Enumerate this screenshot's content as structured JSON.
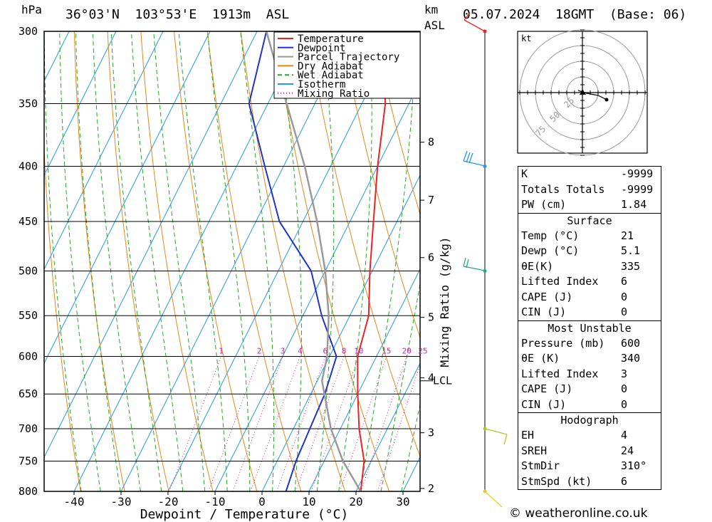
{
  "header": {
    "unit_left": "hPa",
    "location": "36°03'N  103°53'E  1913m  ASL",
    "km_label": "km",
    "asl_label": "ASL",
    "datetime": "05.07.2024  18GMT  (Base: 06)"
  },
  "legend": {
    "items": [
      {
        "label": "Temperature",
        "color": "#ee2222",
        "dash": ""
      },
      {
        "label": "Dewpoint",
        "color": "#2233cc",
        "dash": ""
      },
      {
        "label": "Parcel Trajectory",
        "color": "#999999",
        "dash": ""
      },
      {
        "label": "Dry Adiabat",
        "color": "#e8861a",
        "dash": ""
      },
      {
        "label": "Wet Adiabat",
        "color": "#22aa22",
        "dash": "6,4"
      },
      {
        "label": "Isotherm",
        "color": "#2299ee",
        "dash": ""
      },
      {
        "label": "Mixing Ratio",
        "color": "#cc22aa",
        "dash": "1,3"
      }
    ]
  },
  "chart_data": {
    "type": "line",
    "xlabel": "Dewpoint / Temperature (°C)",
    "y_left_label": "hPa",
    "mixing_ratio_axis_label": "Mixing Ratio (g/kg)",
    "xlim": [
      -48,
      34
    ],
    "pressure_range": [
      300,
      800
    ],
    "x_ticks": [
      -40,
      -30,
      -20,
      -10,
      0,
      10,
      20,
      30
    ],
    "pressure_levels": [
      300,
      350,
      400,
      450,
      500,
      550,
      600,
      650,
      700,
      750,
      800
    ],
    "km_ticks": [
      {
        "label": "8",
        "p": 380
      },
      {
        "label": "7",
        "p": 430
      },
      {
        "label": "6",
        "p": 486
      },
      {
        "label": "5",
        "p": 552
      },
      {
        "label": "4",
        "p": 628
      },
      {
        "label": "3",
        "p": 706
      },
      {
        "label": "2",
        "p": 795
      }
    ],
    "lcl": {
      "label": "LCL",
      "p": 632
    },
    "mixing_ratio_labels": [
      "1",
      "2",
      "3",
      "4",
      "6",
      "8",
      "10",
      "15",
      "20",
      "25"
    ],
    "series": [
      {
        "name": "Temperature",
        "points": [
          [
            800,
            21.0
          ],
          [
            750,
            18.5
          ],
          [
            700,
            14.0
          ],
          [
            650,
            10.0
          ],
          [
            600,
            6.0
          ],
          [
            550,
            4.0
          ],
          [
            500,
            -0.5
          ],
          [
            450,
            -5.0
          ],
          [
            400,
            -10.0
          ],
          [
            350,
            -15.0
          ],
          [
            300,
            -23.0
          ]
        ]
      },
      {
        "name": "Dewpoint",
        "points": [
          [
            800,
            5.1
          ],
          [
            750,
            4.0
          ],
          [
            700,
            3.5
          ],
          [
            650,
            3.0
          ],
          [
            600,
            1.5
          ],
          [
            550,
            -6.0
          ],
          [
            500,
            -13.0
          ],
          [
            450,
            -25.0
          ],
          [
            400,
            -34.0
          ],
          [
            350,
            -44.0
          ],
          [
            300,
            -48.0
          ]
        ]
      },
      {
        "name": "Parcel Trajectory",
        "points": [
          [
            800,
            21.0
          ],
          [
            750,
            14.0
          ],
          [
            700,
            8.0
          ],
          [
            632,
            1.0
          ],
          [
            600,
            -0.5
          ],
          [
            550,
            -4.5
          ],
          [
            500,
            -10.0
          ],
          [
            450,
            -17.0
          ],
          [
            400,
            -25.5
          ],
          [
            350,
            -36.0
          ],
          [
            300,
            -48.0
          ]
        ]
      }
    ],
    "wind_barbs": [
      {
        "p": 300,
        "color": "#ee2222"
      },
      {
        "p": 400,
        "color": "#2299ee"
      },
      {
        "p": 500,
        "color": "#22aa88"
      },
      {
        "p": 700,
        "color": "#aacc22"
      },
      {
        "p": 800,
        "color": "#eecc22"
      }
    ],
    "hodograph": {
      "unit_label": "kt",
      "rings": [
        "25",
        "50",
        "75"
      ]
    }
  },
  "indices": {
    "general": [
      {
        "label": "K",
        "value": "-9999"
      },
      {
        "label": "Totals Totals",
        "value": "-9999"
      },
      {
        "label": "PW (cm)",
        "value": "1.84"
      }
    ],
    "surface": {
      "title": "Surface",
      "rows": [
        {
          "label": "Temp (°C)",
          "value": "21"
        },
        {
          "label": "Dewp (°C)",
          "value": "5.1"
        },
        {
          "label": "θE(K)",
          "value": "335"
        },
        {
          "label": "Lifted Index",
          "value": "6"
        },
        {
          "label": "CAPE (J)",
          "value": "0"
        },
        {
          "label": "CIN (J)",
          "value": "0"
        }
      ]
    },
    "most_unstable": {
      "title": "Most Unstable",
      "rows": [
        {
          "label": "Pressure (mb)",
          "value": "600"
        },
        {
          "label": "θE (K)",
          "value": "340"
        },
        {
          "label": "Lifted Index",
          "value": "3"
        },
        {
          "label": "CAPE (J)",
          "value": "0"
        },
        {
          "label": "CIN (J)",
          "value": "0"
        }
      ]
    },
    "hodograph": {
      "title": "Hodograph",
      "rows": [
        {
          "label": "EH",
          "value": "4"
        },
        {
          "label": "SREH",
          "value": "24"
        },
        {
          "label": "StmDir",
          "value": "310°"
        },
        {
          "label": "StmSpd (kt)",
          "value": "6"
        }
      ]
    }
  },
  "footer": {
    "copyright": "© weatheronline.co.uk"
  }
}
